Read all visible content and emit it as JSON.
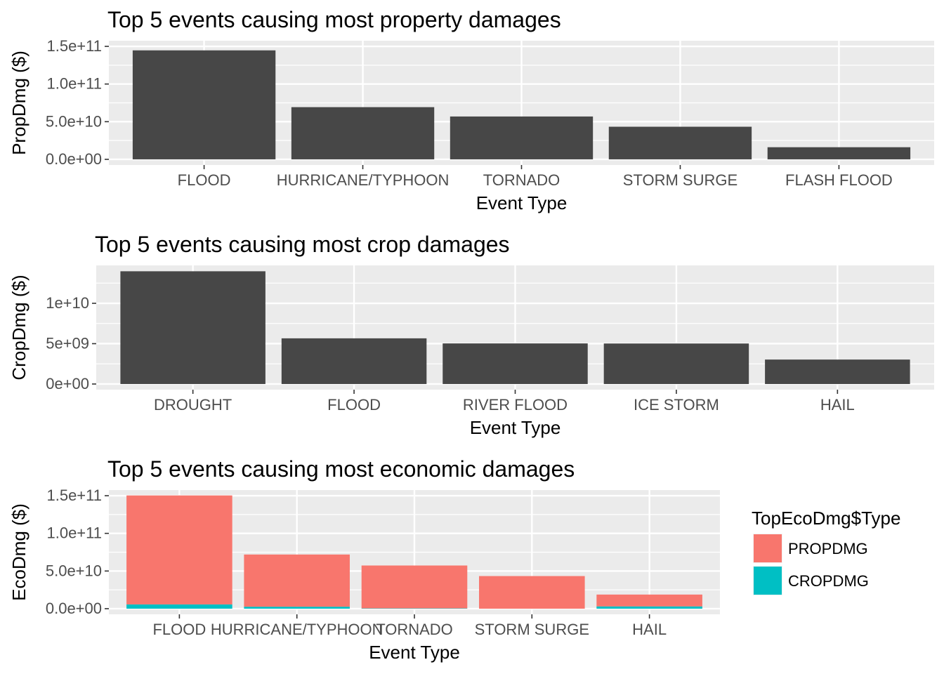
{
  "chart_data": [
    {
      "type": "bar",
      "title": "Top 5 events causing most property damages",
      "xlabel": "Event Type",
      "ylabel": "PropDmg ($)",
      "categories": [
        "FLOOD",
        "HURRICANE/TYPHOON",
        "TORNADO",
        "STORM SURGE",
        "FLASH FLOOD"
      ],
      "values": [
        144700000000,
        69300000000,
        56900000000,
        43300000000,
        16100000000
      ],
      "ylim": [
        0,
        150000000000
      ],
      "yticks": [
        0,
        50000000000,
        100000000000,
        150000000000
      ],
      "ytick_labels": [
        "0.0e+00",
        "5.0e+10",
        "1.0e+11",
        "1.5e+11"
      ],
      "bar_color": "#474747",
      "grid": true
    },
    {
      "type": "bar",
      "title": "Top 5 events causing most crop damages",
      "xlabel": "Event Type",
      "ylabel": "CropDmg ($)",
      "categories": [
        "DROUGHT",
        "FLOOD",
        "RIVER FLOOD",
        "ICE STORM",
        "HAIL"
      ],
      "values": [
        13970000000,
        5660000000,
        5030000000,
        5020000000,
        3030000000
      ],
      "ylim": [
        0,
        14000000000
      ],
      "yticks": [
        0,
        5000000000,
        10000000000
      ],
      "ytick_labels": [
        "0e+00",
        "5e+09",
        "1e+10"
      ],
      "bar_color": "#474747",
      "grid": true
    },
    {
      "type": "bar",
      "stacked": true,
      "title": "Top 5 events causing most economic damages",
      "xlabel": "Event Type",
      "ylabel": "EcoDmg ($)",
      "categories": [
        "FLOOD",
        "HURRICANE/TYPHOON",
        "TORNADO",
        "STORM SURGE",
        "HAIL"
      ],
      "series": [
        {
          "name": "PROPDMG",
          "color": "#F8766D",
          "values": [
            144700000000,
            69300000000,
            56900000000,
            43300000000,
            15700000000
          ]
        },
        {
          "name": "CROPDMG",
          "color": "#00BFC4",
          "values": [
            5660000000,
            2610000000,
            410000000,
            5000,
            3030000000
          ]
        }
      ],
      "ylim": [
        0,
        150000000000
      ],
      "yticks": [
        0,
        50000000000,
        100000000000,
        150000000000
      ],
      "ytick_labels": [
        "0.0e+00",
        "5.0e+10",
        "1.0e+11",
        "1.5e+11"
      ],
      "legend": {
        "title": "TopEcoDmg$Type",
        "placement": "right",
        "order": [
          "PROPDMG",
          "CROPDMG"
        ]
      },
      "grid": true
    }
  ]
}
